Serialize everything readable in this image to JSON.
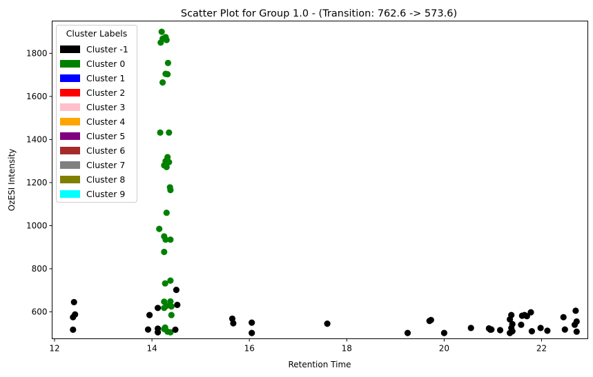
{
  "chart_data": {
    "type": "scatter",
    "title": "Scatter Plot for Group 1.0 -  (Transition: 762.6 -> 573.6)",
    "xlabel": "Retention Time",
    "ylabel": "OzESI Intensity",
    "xlim": [
      11.95,
      22.95
    ],
    "ylim": [
      475,
      1950
    ],
    "xticks": [
      12,
      14,
      16,
      18,
      20,
      22
    ],
    "yticks": [
      600,
      800,
      1000,
      1200,
      1400,
      1600,
      1800
    ],
    "grid": false,
    "legend": {
      "title": "Cluster Labels",
      "placement": "top-left",
      "entries": [
        {
          "label": "Cluster -1",
          "color": "#000000"
        },
        {
          "label": "Cluster 0",
          "color": "#008000"
        },
        {
          "label": "Cluster 1",
          "color": "#0000ff"
        },
        {
          "label": "Cluster 2",
          "color": "#ff0000"
        },
        {
          "label": "Cluster 3",
          "color": "#ffc0cb"
        },
        {
          "label": "Cluster 4",
          "color": "#ffa500"
        },
        {
          "label": "Cluster 5",
          "color": "#800080"
        },
        {
          "label": "Cluster 6",
          "color": "#a52a2a"
        },
        {
          "label": "Cluster 7",
          "color": "#808080"
        },
        {
          "label": "Cluster 8",
          "color": "#808000"
        },
        {
          "label": "Cluster 9",
          "color": "#00ffff"
        }
      ]
    },
    "series": [
      {
        "cluster": "Cluster 0",
        "color": "#008000",
        "points": [
          [
            14.2,
            1900
          ],
          [
            14.28,
            1875
          ],
          [
            14.22,
            1868
          ],
          [
            14.3,
            1862
          ],
          [
            14.18,
            1850
          ],
          [
            14.33,
            1755
          ],
          [
            14.28,
            1705
          ],
          [
            14.32,
            1703
          ],
          [
            14.22,
            1665
          ],
          [
            14.17,
            1432
          ],
          [
            14.35,
            1432
          ],
          [
            14.32,
            1318
          ],
          [
            14.28,
            1300
          ],
          [
            14.35,
            1295
          ],
          [
            14.25,
            1280
          ],
          [
            14.3,
            1272
          ],
          [
            14.37,
            1178
          ],
          [
            14.38,
            1165
          ],
          [
            14.3,
            1060
          ],
          [
            14.15,
            985
          ],
          [
            14.25,
            950
          ],
          [
            14.28,
            935
          ],
          [
            14.38,
            935
          ],
          [
            14.25,
            878
          ],
          [
            14.38,
            745
          ],
          [
            14.27,
            732
          ],
          [
            14.38,
            648
          ],
          [
            14.25,
            647
          ],
          [
            14.3,
            628
          ],
          [
            14.4,
            625
          ],
          [
            14.25,
            618
          ],
          [
            14.4,
            585
          ],
          [
            14.27,
            527
          ],
          [
            14.25,
            520
          ],
          [
            14.32,
            508
          ],
          [
            14.38,
            505
          ]
        ]
      },
      {
        "cluster": "Cluster -1",
        "color": "#000000",
        "points": [
          [
            12.4,
            645
          ],
          [
            12.42,
            588
          ],
          [
            12.38,
            575
          ],
          [
            12.38,
            517
          ],
          [
            13.95,
            585
          ],
          [
            14.12,
            618
          ],
          [
            13.92,
            518
          ],
          [
            14.12,
            522
          ],
          [
            14.12,
            505
          ],
          [
            14.5,
            702
          ],
          [
            14.52,
            632
          ],
          [
            14.48,
            517
          ],
          [
            15.65,
            568
          ],
          [
            15.67,
            547
          ],
          [
            16.05,
            550
          ],
          [
            16.05,
            502
          ],
          [
            17.6,
            545
          ],
          [
            19.25,
            502
          ],
          [
            19.7,
            558
          ],
          [
            19.73,
            562
          ],
          [
            20.0,
            502
          ],
          [
            20.55,
            525
          ],
          [
            20.92,
            523
          ],
          [
            20.95,
            517
          ],
          [
            20.97,
            518
          ],
          [
            21.15,
            515
          ],
          [
            21.35,
            565
          ],
          [
            21.38,
            585
          ],
          [
            21.4,
            543
          ],
          [
            21.38,
            525
          ],
          [
            21.4,
            510
          ],
          [
            21.35,
            502
          ],
          [
            21.6,
            582
          ],
          [
            21.65,
            585
          ],
          [
            21.7,
            580
          ],
          [
            21.58,
            540
          ],
          [
            21.78,
            598
          ],
          [
            21.8,
            510
          ],
          [
            21.98,
            525
          ],
          [
            22.12,
            512
          ],
          [
            22.45,
            575
          ],
          [
            22.48,
            518
          ],
          [
            22.7,
            605
          ],
          [
            22.72,
            555
          ],
          [
            22.68,
            540
          ],
          [
            22.72,
            508
          ]
        ]
      }
    ]
  }
}
